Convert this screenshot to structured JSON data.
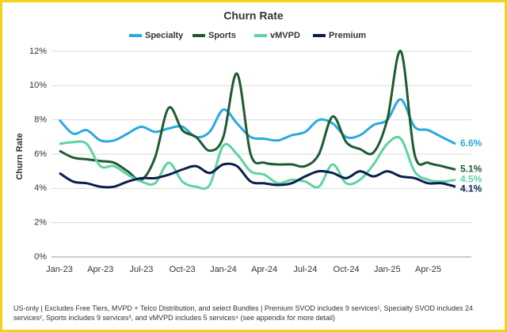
{
  "chart_data": {
    "type": "line",
    "title": "Churn Rate",
    "y_label": "Churn Rate",
    "categories": [
      "Jan-23",
      null,
      null,
      "Apr-23",
      null,
      null,
      "Jul-23",
      null,
      null,
      "Oct-23",
      null,
      null,
      "Jan-24",
      null,
      null,
      "Apr-24",
      null,
      null,
      "Jul-24",
      null,
      null,
      "Oct-24",
      null,
      null,
      "Jan-25",
      null,
      null,
      "Apr-25",
      null,
      null
    ],
    "ylim": [
      0,
      12
    ],
    "yticks": [
      {
        "value": 0,
        "label": "0%"
      },
      {
        "value": 2,
        "label": "2%"
      },
      {
        "value": 4,
        "label": "4%"
      },
      {
        "value": 6,
        "label": "6%"
      },
      {
        "value": 8,
        "label": "8%"
      },
      {
        "value": 10,
        "label": "10%"
      },
      {
        "value": 12,
        "label": "12%"
      }
    ],
    "grid": true,
    "series": [
      {
        "name": "Specialty",
        "color": "#29a9e0",
        "values": [
          8.0,
          7.2,
          7.4,
          6.8,
          6.8,
          7.2,
          7.6,
          7.3,
          7.5,
          7.6,
          7.0,
          7.3,
          8.6,
          7.8,
          7.0,
          6.9,
          6.8,
          7.1,
          7.3,
          8.0,
          7.8,
          7.0,
          7.1,
          7.7,
          8.0,
          9.2,
          7.6,
          7.4,
          7.0,
          6.6
        ],
        "value_labels": [
          null,
          null,
          null,
          null,
          null,
          null,
          null,
          null,
          null,
          null,
          null,
          null,
          null,
          null,
          null,
          null,
          null,
          null,
          null,
          null,
          null,
          null,
          null,
          null,
          null,
          null,
          null,
          null,
          null,
          "6.6%"
        ]
      },
      {
        "name": "Sports",
        "color": "#1e5b32",
        "values": [
          6.2,
          5.8,
          5.7,
          5.6,
          5.5,
          5.0,
          4.5,
          5.8,
          8.7,
          7.4,
          7.0,
          6.2,
          7.0,
          10.7,
          6.0,
          5.5,
          5.4,
          5.4,
          5.3,
          6.0,
          8.2,
          6.7,
          6.3,
          6.1,
          8.0,
          12.0,
          6.0,
          5.5,
          5.3,
          5.1
        ],
        "value_labels": [
          null,
          null,
          null,
          null,
          null,
          null,
          null,
          null,
          null,
          null,
          null,
          null,
          null,
          null,
          null,
          null,
          null,
          null,
          null,
          null,
          null,
          null,
          null,
          null,
          null,
          null,
          null,
          null,
          null,
          "5.1%"
        ]
      },
      {
        "name": "vMVPD",
        "color": "#5fd3a0",
        "values": [
          6.6,
          6.7,
          6.6,
          5.3,
          5.3,
          4.8,
          4.4,
          4.3,
          5.5,
          4.4,
          4.1,
          4.2,
          6.5,
          6.0,
          5.0,
          4.8,
          4.3,
          4.5,
          4.4,
          4.1,
          5.4,
          4.3,
          4.5,
          5.4,
          6.6,
          6.9,
          5.0,
          4.5,
          4.4,
          4.5
        ],
        "value_labels": [
          null,
          null,
          null,
          null,
          null,
          null,
          null,
          null,
          null,
          null,
          null,
          null,
          null,
          null,
          null,
          null,
          null,
          null,
          null,
          null,
          null,
          null,
          null,
          null,
          null,
          null,
          null,
          null,
          null,
          "4.5%"
        ]
      },
      {
        "name": "Premium",
        "color": "#0b1f4e",
        "values": [
          4.9,
          4.4,
          4.3,
          4.1,
          4.1,
          4.4,
          4.6,
          4.6,
          4.8,
          5.1,
          5.3,
          4.9,
          5.4,
          5.3,
          4.4,
          4.3,
          4.2,
          4.3,
          4.7,
          5.0,
          4.9,
          4.6,
          5.0,
          4.7,
          5.0,
          4.7,
          4.6,
          4.3,
          4.3,
          4.1
        ],
        "value_labels": [
          null,
          null,
          null,
          null,
          null,
          null,
          null,
          null,
          null,
          null,
          null,
          null,
          null,
          null,
          null,
          null,
          null,
          null,
          null,
          null,
          null,
          null,
          null,
          null,
          null,
          null,
          null,
          null,
          null,
          "4.1%"
        ]
      }
    ],
    "footnote": "US-only | Excludes Free Tiers, MVPD + Telco Distribution, and select Bundles | Premium SVOD includes 9 services¹, Specialty SVOD includes 24 services², Sports includes 9 services³, and vMVPD includes 5 services⁴ (see appendix for more detail)"
  }
}
